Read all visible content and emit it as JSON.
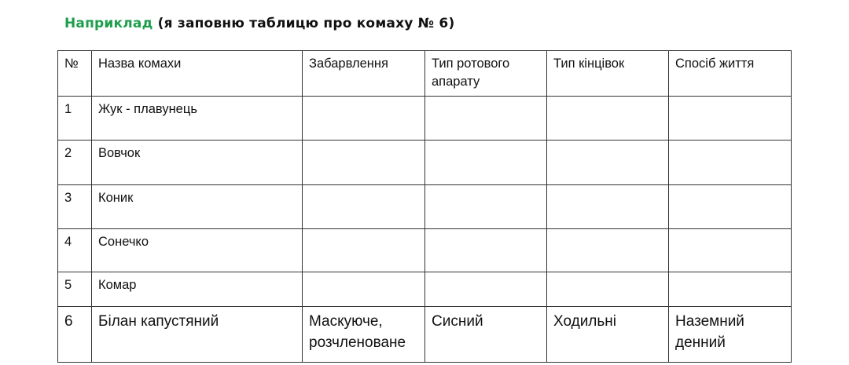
{
  "title": {
    "highlight": "Наприклад",
    "rest": "(я заповню таблицю про комаху № 6)"
  },
  "colors": {
    "highlight": "#1e9e4c"
  },
  "table": {
    "headers": [
      "№",
      "Назва комахи",
      "Забарвлення",
      "Тип ротового апарату",
      "Тип кінцівок",
      "Спосіб життя"
    ],
    "rows": [
      [
        "1",
        "Жук - плавунець",
        "",
        "",
        "",
        ""
      ],
      [
        "2",
        "Вовчок",
        "",
        "",
        "",
        ""
      ],
      [
        "3",
        "Коник",
        "",
        "",
        "",
        ""
      ],
      [
        "4",
        "Сонечко",
        "",
        "",
        "",
        ""
      ],
      [
        "5",
        "Комар",
        "",
        "",
        "",
        ""
      ],
      [
        "6",
        "Білан капустяний",
        "Маскуюче, розчленоване",
        "Сисний",
        "Ходильні",
        "Наземний денний"
      ]
    ]
  }
}
